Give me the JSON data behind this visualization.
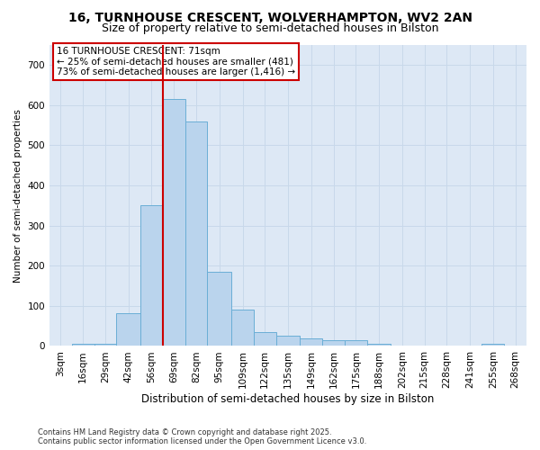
{
  "title_line1": "16, TURNHOUSE CRESCENT, WOLVERHAMPTON, WV2 2AN",
  "title_line2": "Size of property relative to semi-detached houses in Bilston",
  "xlabel": "Distribution of semi-detached houses by size in Bilston",
  "ylabel": "Number of semi-detached properties",
  "footnote": "Contains HM Land Registry data © Crown copyright and database right 2025.\nContains public sector information licensed under the Open Government Licence v3.0.",
  "bar_color": "#bad4ed",
  "bar_edge_color": "#6aaed6",
  "background_color": "#dde8f5",
  "vline_color": "#cc0000",
  "categories": [
    "3sqm",
    "16sqm",
    "29sqm",
    "42sqm",
    "56sqm",
    "69sqm",
    "82sqm",
    "95sqm",
    "109sqm",
    "122sqm",
    "135sqm",
    "149sqm",
    "162sqm",
    "175sqm",
    "188sqm",
    "202sqm",
    "215sqm",
    "228sqm",
    "241sqm",
    "255sqm",
    "268sqm"
  ],
  "bin_left": [
    3,
    16,
    29,
    42,
    56,
    69,
    82,
    95,
    109,
    122,
    135,
    149,
    162,
    175,
    188,
    202,
    215,
    228,
    241,
    255,
    268
  ],
  "bin_right": [
    16,
    29,
    42,
    56,
    69,
    82,
    95,
    109,
    122,
    135,
    149,
    162,
    175,
    188,
    202,
    215,
    228,
    241,
    255,
    268,
    281
  ],
  "values": [
    2,
    5,
    5,
    82,
    350,
    615,
    560,
    185,
    90,
    35,
    25,
    20,
    15,
    15,
    5,
    0,
    0,
    0,
    0,
    5,
    0
  ],
  "ylim": [
    0,
    750
  ],
  "yticks": [
    0,
    100,
    200,
    300,
    400,
    500,
    600,
    700
  ],
  "vline_x": 69,
  "annotation_title": "16 TURNHOUSE CRESCENT: 71sqm",
  "annotation_line1": "← 25% of semi-detached houses are smaller (481)",
  "annotation_line2": "73% of semi-detached houses are larger (1,416) →"
}
